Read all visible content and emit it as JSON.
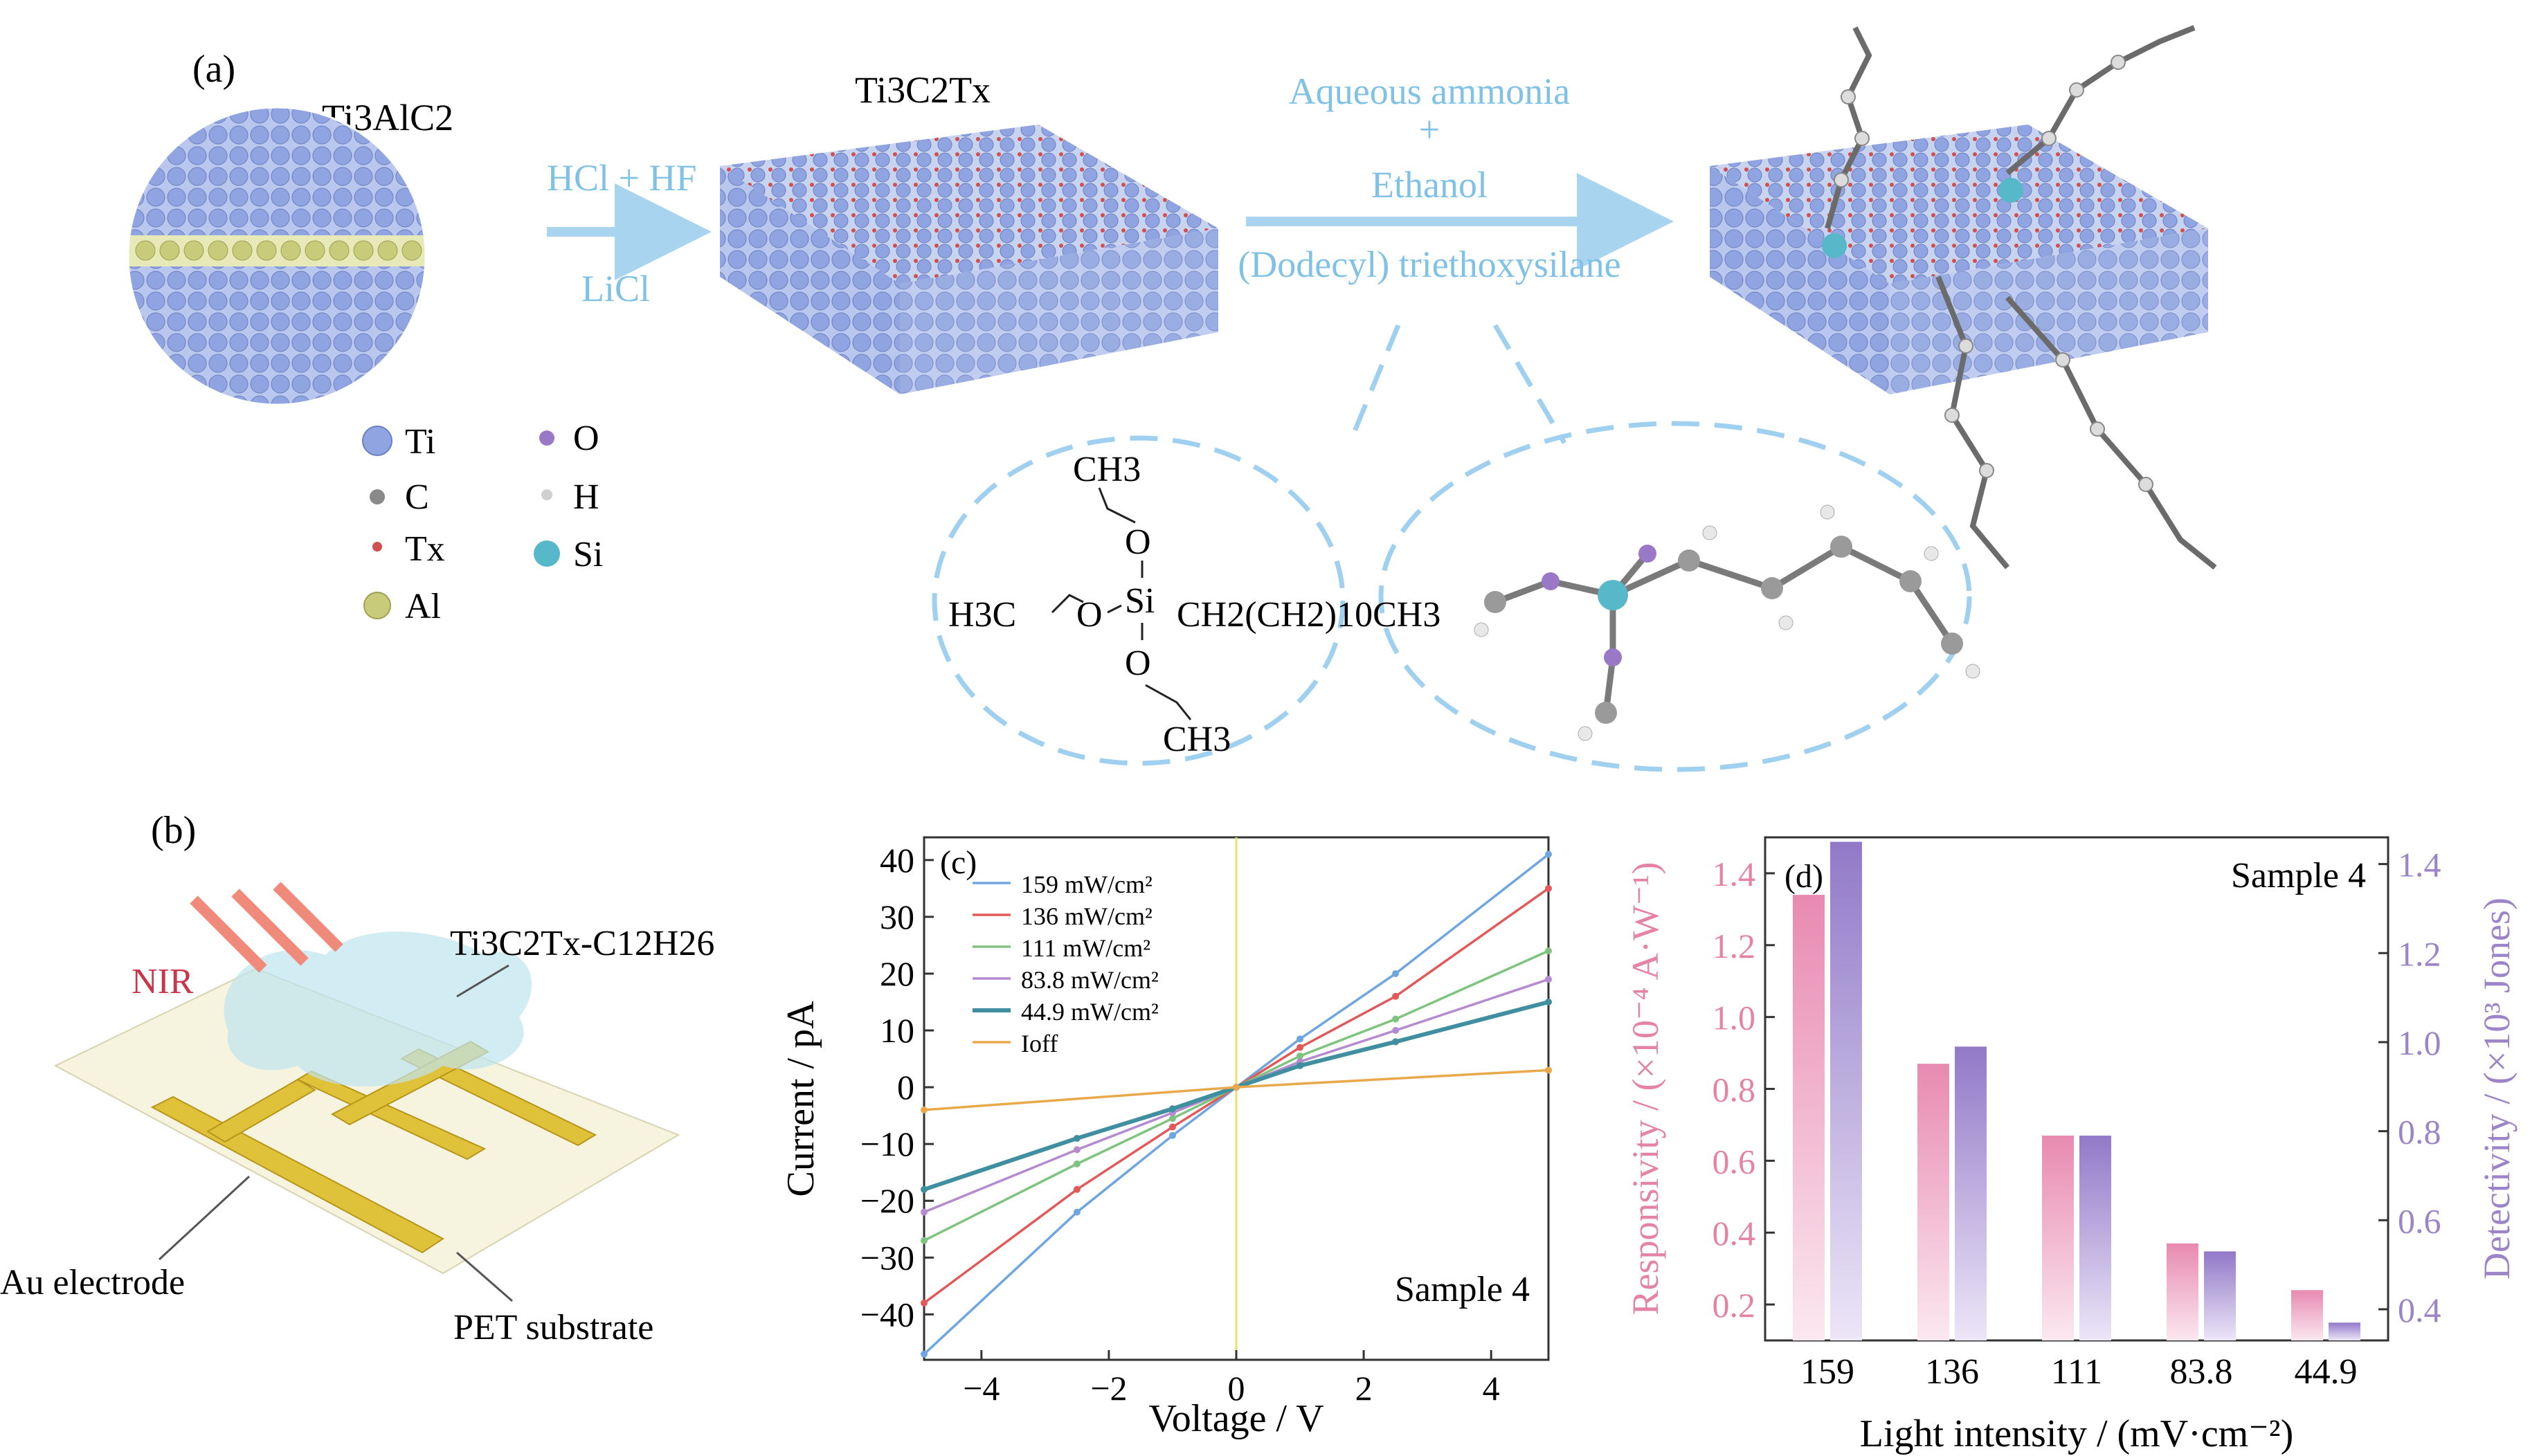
{
  "panel_a": {
    "label": "(a)",
    "parent_name": "Ti3AlC2",
    "step1": {
      "top": "HCl + HF",
      "bottom": "LiCl"
    },
    "mxene_name": "Ti3C2Tx",
    "step2": {
      "line1": "Aqueous ammonia",
      "line2": "+",
      "line3": "Ethanol",
      "line4": "(Dodecyl) triethoxysilane"
    },
    "molecule": {
      "top": "CH3",
      "o_top": "O",
      "si": "Si",
      "left": "H3C",
      "o_left": "O",
      "right": "CH2(CH2)10CH3",
      "o_bottom": "O",
      "bottom": "CH3"
    },
    "legend": [
      {
        "name": "Ti",
        "color": "#8fa4e0"
      },
      {
        "name": "C",
        "color": "#8a8a8a"
      },
      {
        "name": "Tx",
        "color": "#d05050"
      },
      {
        "name": "Al",
        "color": "#c8cc7a"
      },
      {
        "name": "O",
        "color": "#9a78c8"
      },
      {
        "name": "H",
        "color": "#cfcfcf"
      },
      {
        "name": "Si",
        "color": "#56b8c8"
      }
    ]
  },
  "panel_b": {
    "label": "(b)",
    "nir": "NIR",
    "film": "Ti3C2Tx-C12H26",
    "electrode": "Au electrode",
    "substrate": "PET substrate"
  },
  "chart_data": [
    {
      "type": "line",
      "panel": "(c)",
      "xlabel": "Voltage / V",
      "ylabel": "Current / pA",
      "annotation": "Sample 4",
      "xlim": [
        -4.9,
        4.9
      ],
      "ylim": [
        -48,
        44
      ],
      "xticks": [
        -4,
        -2,
        0,
        2,
        4
      ],
      "yticks": [
        -40,
        -30,
        -20,
        -10,
        0,
        10,
        20,
        30,
        40
      ],
      "legend_position": "top-left",
      "series": [
        {
          "name": "159 mW/cm²",
          "color": "#6fa6e0",
          "x": [
            -4.9,
            -2.5,
            -1,
            0,
            1,
            2.5,
            4.9
          ],
          "y": [
            -47,
            -22,
            -8.5,
            0,
            8.5,
            20,
            41
          ]
        },
        {
          "name": "136 mW/cm²",
          "color": "#e05a5a",
          "x": [
            -4.9,
            -2.5,
            -1,
            0,
            1,
            2.5,
            4.9
          ],
          "y": [
            -38,
            -18,
            -7,
            0,
            7,
            16,
            35
          ]
        },
        {
          "name": "111 mW/cm²",
          "color": "#7ec47e",
          "x": [
            -4.9,
            -2.5,
            -1,
            0,
            1,
            2.5,
            4.9
          ],
          "y": [
            -27,
            -13.5,
            -5.5,
            0,
            5.5,
            12,
            24
          ]
        },
        {
          "name": "83.8 mW/cm²",
          "color": "#b48ad0",
          "x": [
            -4.9,
            -2.5,
            -1,
            0,
            1,
            2.5,
            4.9
          ],
          "y": [
            -22,
            -11,
            -4.5,
            0,
            4.5,
            10,
            19
          ]
        },
        {
          "name": "44.9 mW/cm²",
          "color": "#3f8fa0",
          "x": [
            -4.9,
            -2.5,
            -1,
            0,
            1,
            2.5,
            4.9
          ],
          "y": [
            -18,
            -9,
            -3.8,
            0,
            3.8,
            8,
            15
          ]
        },
        {
          "name": "Ioff",
          "color": "#e8a94a",
          "x": [
            -4.9,
            0,
            4.9
          ],
          "y": [
            -4,
            0,
            3
          ]
        }
      ]
    },
    {
      "type": "bar",
      "panel": "(d)",
      "annotation": "Sample 4",
      "xlabel": "Light intensity / (mV·cm⁻²)",
      "ylabel_left": "Responsivity / (×10⁻⁴ A·W⁻¹)",
      "ylabel_right": "Detectivity / (×10³ Jones)",
      "categories": [
        "159",
        "136",
        "111",
        "83.8",
        "44.9"
      ],
      "ylim_left": [
        0.1,
        1.5
      ],
      "ylim_right": [
        0.33,
        1.46
      ],
      "yticks_left": [
        0.2,
        0.4,
        0.6,
        0.8,
        1.0,
        1.2,
        1.4
      ],
      "yticks_right": [
        0.4,
        0.6,
        0.8,
        1.0,
        1.2,
        1.4
      ],
      "series": [
        {
          "axis": "left",
          "color": "#e68fb0",
          "values": [
            1.34,
            0.87,
            0.67,
            0.37,
            0.24
          ]
        },
        {
          "axis": "right",
          "color": "#9b7fcc",
          "values": [
            1.45,
            0.99,
            0.79,
            0.53,
            0.37
          ]
        }
      ]
    }
  ]
}
